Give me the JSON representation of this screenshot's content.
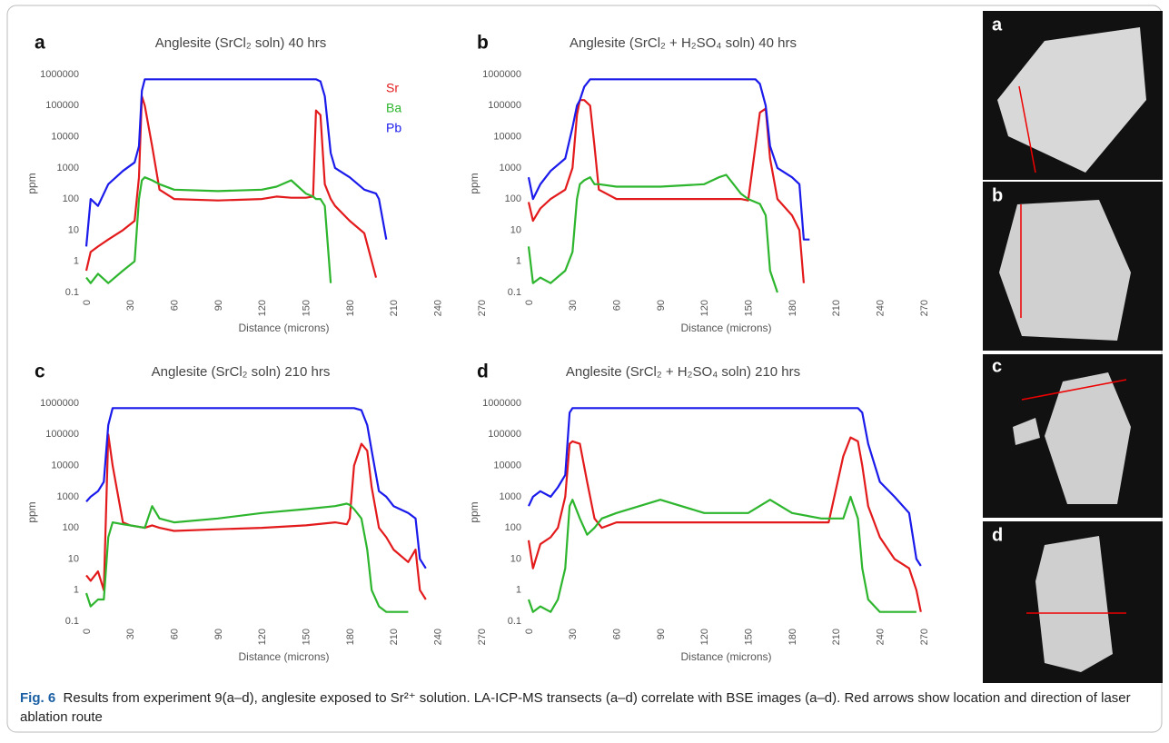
{
  "chart_data": [
    {
      "type": "line",
      "panel": "a",
      "title": "Anglesite (SrCl₂ soln) 40 hrs",
      "xlabel": "Distance (microns)",
      "ylabel": "ppm",
      "log_scale": true,
      "legend": true,
      "ylim": [
        0.1,
        1000000
      ],
      "yticks": [
        0.1,
        1,
        10,
        100,
        1000,
        10000,
        100000,
        1000000
      ],
      "xlim": [
        0,
        270
      ],
      "xticks": [
        0,
        30,
        60,
        90,
        120,
        150,
        180,
        210,
        240,
        270
      ],
      "x": [
        0,
        3,
        8,
        15,
        25,
        33,
        36,
        38,
        40,
        45,
        50,
        60,
        90,
        120,
        130,
        140,
        150,
        155,
        157,
        160,
        163,
        167,
        170,
        180,
        190,
        198,
        200,
        205
      ],
      "series": [
        {
          "name": "Sr",
          "color": "#e31a1c",
          "values": [
            0.5,
            2,
            3,
            5,
            10,
            20,
            500,
            200000,
            100000,
            5000,
            200,
            100,
            90,
            100,
            120,
            110,
            110,
            120,
            70000,
            50000,
            300,
            100,
            60,
            20,
            8,
            0.3,
            null,
            null
          ]
        },
        {
          "name": "Ba",
          "color": "#2db52d",
          "values": [
            0.3,
            0.2,
            0.4,
            0.2,
            0.5,
            1,
            100,
            400,
            500,
            400,
            300,
            200,
            180,
            200,
            250,
            400,
            150,
            120,
            100,
            100,
            60,
            0.2,
            null,
            null,
            null,
            null,
            null,
            null
          ]
        },
        {
          "name": "Pb",
          "color": "#1a1aeb",
          "values": [
            3,
            100,
            60,
            300,
            800,
            1500,
            5000,
            300000,
            700000,
            700000,
            700000,
            700000,
            700000,
            700000,
            700000,
            700000,
            700000,
            700000,
            700000,
            600000,
            200000,
            3000,
            1000,
            500,
            200,
            150,
            100,
            5
          ]
        }
      ]
    },
    {
      "type": "line",
      "panel": "b",
      "title": "Anglesite (SrCl₂ + H₂SO₄ soln) 40 hrs",
      "xlabel": "Distance (microns)",
      "ylabel": "ppm",
      "log_scale": true,
      "ylim": [
        0.1,
        1000000
      ],
      "yticks": [
        0.1,
        1,
        10,
        100,
        1000,
        10000,
        100000,
        1000000
      ],
      "xlim": [
        0,
        270
      ],
      "xticks": [
        0,
        30,
        60,
        90,
        120,
        150,
        180,
        210,
        240,
        270
      ],
      "x": [
        0,
        3,
        8,
        15,
        25,
        30,
        33,
        35,
        38,
        42,
        45,
        48,
        60,
        90,
        120,
        130,
        135,
        145,
        150,
        155,
        158,
        162,
        165,
        170,
        180,
        185,
        188,
        192
      ],
      "series": [
        {
          "color": "#e31a1c",
          "values": [
            80,
            20,
            50,
            100,
            200,
            1000,
            50000,
            150000,
            150000,
            100000,
            5000,
            200,
            100,
            100,
            100,
            100,
            100,
            100,
            90,
            5000,
            60000,
            80000,
            2000,
            100,
            30,
            10,
            0.2,
            null
          ]
        },
        {
          "color": "#2db52d",
          "values": [
            3,
            0.2,
            0.3,
            0.2,
            0.5,
            2,
            100,
            300,
            400,
            500,
            300,
            300,
            250,
            250,
            300,
            500,
            600,
            150,
            100,
            80,
            70,
            30,
            0.5,
            0.1,
            null,
            null,
            null,
            null
          ]
        },
        {
          "color": "#1a1aeb",
          "values": [
            500,
            100,
            300,
            800,
            2000,
            20000,
            100000,
            150000,
            400000,
            700000,
            700000,
            700000,
            700000,
            700000,
            700000,
            700000,
            700000,
            700000,
            700000,
            700000,
            500000,
            100000,
            5000,
            1000,
            500,
            300,
            5,
            5
          ]
        }
      ]
    },
    {
      "type": "line",
      "panel": "c",
      "title": "Anglesite (SrCl₂ soln) 210 hrs",
      "xlabel": "Distance (microns)",
      "ylabel": "ppm",
      "log_scale": true,
      "ylim": [
        0.1,
        1000000
      ],
      "yticks": [
        0.1,
        1,
        10,
        100,
        1000,
        10000,
        100000,
        1000000
      ],
      "xlim": [
        0,
        270
      ],
      "xticks": [
        0,
        30,
        60,
        90,
        120,
        150,
        180,
        210,
        240,
        270
      ],
      "x": [
        0,
        3,
        8,
        12,
        15,
        18,
        25,
        30,
        40,
        45,
        50,
        60,
        90,
        120,
        150,
        170,
        178,
        180,
        183,
        188,
        192,
        195,
        200,
        205,
        210,
        220,
        225,
        228,
        232
      ],
      "series": [
        {
          "color": "#e31a1c",
          "values": [
            3,
            2,
            4,
            1,
            100000,
            10000,
            150,
            120,
            100,
            120,
            100,
            80,
            90,
            100,
            120,
            150,
            130,
            200,
            10000,
            50000,
            30000,
            2000,
            100,
            50,
            20,
            8,
            20,
            1,
            0.5
          ]
        },
        {
          "color": "#2db52d",
          "values": [
            0.8,
            0.3,
            0.5,
            0.5,
            50,
            150,
            130,
            120,
            100,
            500,
            200,
            150,
            200,
            300,
            400,
            500,
            600,
            550,
            400,
            200,
            20,
            1,
            0.3,
            0.2,
            0.2,
            0.2,
            null,
            null,
            null
          ]
        },
        {
          "color": "#1a1aeb",
          "values": [
            700,
            1000,
            1500,
            3000,
            200000,
            700000,
            700000,
            700000,
            700000,
            700000,
            700000,
            700000,
            700000,
            700000,
            700000,
            700000,
            700000,
            700000,
            700000,
            600000,
            200000,
            30000,
            1500,
            1000,
            500,
            300,
            200,
            10,
            5
          ]
        }
      ]
    },
    {
      "type": "line",
      "panel": "d",
      "title": "Anglesite (SrCl₂ + H₂SO₄ soln) 210 hrs",
      "xlabel": "Distance (microns)",
      "ylabel": "ppm",
      "log_scale": true,
      "ylim": [
        0.1,
        1000000
      ],
      "yticks": [
        0.1,
        1,
        10,
        100,
        1000,
        10000,
        100000,
        1000000
      ],
      "xlim": [
        0,
        270
      ],
      "xticks": [
        0,
        30,
        60,
        90,
        120,
        150,
        180,
        210,
        240,
        270
      ],
      "x": [
        0,
        3,
        8,
        15,
        20,
        25,
        28,
        30,
        35,
        40,
        45,
        50,
        60,
        90,
        120,
        150,
        165,
        180,
        200,
        205,
        215,
        220,
        225,
        228,
        232,
        240,
        250,
        260,
        265,
        268
      ],
      "series": [
        {
          "color": "#e31a1c",
          "values": [
            40,
            5,
            30,
            50,
            100,
            1000,
            50000,
            60000,
            50000,
            3000,
            200,
            100,
            150,
            150,
            150,
            150,
            150,
            150,
            150,
            150,
            20000,
            80000,
            60000,
            10000,
            500,
            50,
            10,
            5,
            1,
            0.2
          ]
        },
        {
          "color": "#2db52d",
          "values": [
            0.5,
            0.2,
            0.3,
            0.2,
            0.5,
            5,
            500,
            800,
            200,
            60,
            100,
            200,
            300,
            800,
            300,
            300,
            800,
            300,
            200,
            200,
            200,
            1000,
            200,
            5,
            0.5,
            0.2,
            0.2,
            0.2,
            0.2,
            null
          ]
        },
        {
          "color": "#1a1aeb",
          "values": [
            500,
            1000,
            1500,
            1000,
            2000,
            5000,
            500000,
            700000,
            700000,
            700000,
            700000,
            700000,
            700000,
            700000,
            700000,
            700000,
            700000,
            700000,
            700000,
            700000,
            700000,
            700000,
            700000,
            500000,
            50000,
            3000,
            1000,
            300,
            10,
            6
          ]
        }
      ]
    }
  ],
  "images": [
    {
      "label": "a"
    },
    {
      "label": "b"
    },
    {
      "label": "c"
    },
    {
      "label": "d"
    }
  ],
  "caption": {
    "label": "Fig. 6",
    "text": "Results from experiment 9(a–d), anglesite exposed to Sr²⁺ solution. LA-ICP-MS transects (a–d) correlate with BSE images (a–d). Red arrows show location and direction of laser ablation route"
  }
}
